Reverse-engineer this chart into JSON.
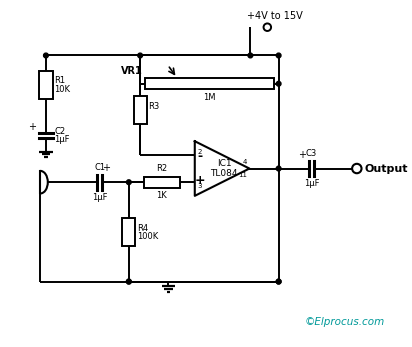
{
  "bg_color": "#ffffff",
  "line_color": "#000000",
  "text_color": "#000000",
  "cyan_color": "#009999",
  "watermark": "©Elprocus.com",
  "supply_label": "+4V to 15V",
  "output_label": "Output"
}
